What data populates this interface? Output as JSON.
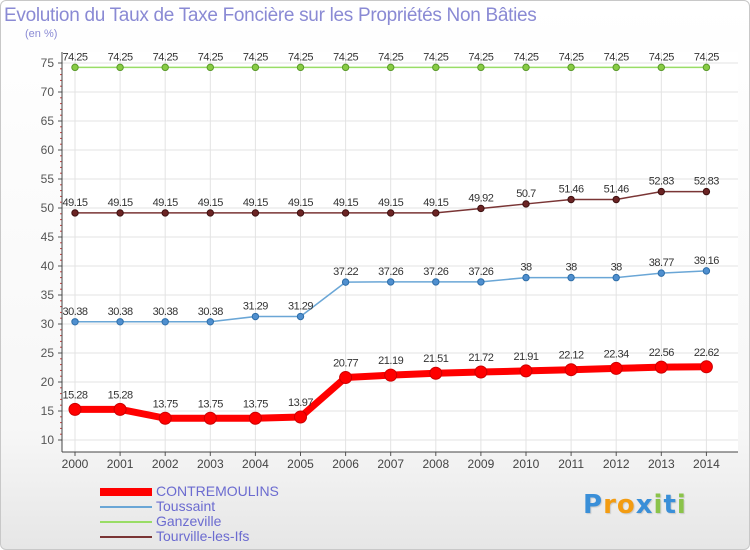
{
  "chart_data": {
    "type": "line",
    "title": "Evolution du Taux de Taxe Foncière sur les Propriétés Non Bâties",
    "ylabel": "(en %)",
    "xlabel": "",
    "ylim": [
      10,
      75
    ],
    "yticks": [
      10,
      15,
      20,
      25,
      30,
      35,
      40,
      45,
      50,
      55,
      60,
      65,
      70,
      75
    ],
    "grid": true,
    "legend_position": "bottom-left",
    "categories": [
      "2000",
      "2001",
      "2002",
      "2003",
      "2004",
      "2005",
      "2006",
      "2007",
      "2008",
      "2009",
      "2010",
      "2011",
      "2012",
      "2013",
      "2014"
    ],
    "series": [
      {
        "name": "CONTREMOULINS",
        "color": "#ff0000",
        "values": [
          15.28,
          15.28,
          13.75,
          13.75,
          13.75,
          13.97,
          20.77,
          21.19,
          21.51,
          21.72,
          21.91,
          22.12,
          22.34,
          22.56,
          22.62
        ],
        "labels": [
          "15.28",
          "15.28",
          "13.75",
          "13.75",
          "13.75",
          "13.97",
          "20.77",
          "21.19",
          "21.51",
          "21.72",
          "21.91",
          "22.12",
          "22.34",
          "22.56",
          "22.62"
        ]
      },
      {
        "name": "Toussaint",
        "color": "#6aa6d6",
        "values": [
          30.38,
          30.38,
          30.38,
          30.38,
          31.29,
          31.29,
          37.22,
          37.26,
          37.26,
          37.26,
          38,
          38,
          38,
          38.77,
          39.16
        ],
        "labels": [
          "30.38",
          "30.38",
          "30.38",
          "30.38",
          "31.29",
          "31.29",
          "37.22",
          "37.26",
          "37.26",
          "37.26",
          "38",
          "38",
          "38",
          "38.77",
          "39.16"
        ]
      },
      {
        "name": "Ganzeville",
        "color": "#99dd66",
        "values": [
          74.25,
          74.25,
          74.25,
          74.25,
          74.25,
          74.25,
          74.25,
          74.25,
          74.25,
          74.25,
          74.25,
          74.25,
          74.25,
          74.25,
          74.25
        ],
        "labels": [
          "74.25",
          "74.25",
          "74.25",
          "74.25",
          "74.25",
          "74.25",
          "74.25",
          "74.25",
          "74.25",
          "74.25",
          "74.25",
          "74.25",
          "74.25",
          "74.25",
          "74.25"
        ]
      },
      {
        "name": "Tourville-les-Ifs",
        "color": "#7a3535",
        "values": [
          49.15,
          49.15,
          49.15,
          49.15,
          49.15,
          49.15,
          49.15,
          49.15,
          49.15,
          49.92,
          50.7,
          51.46,
          51.46,
          52.83,
          52.83
        ],
        "labels": [
          "49.15",
          "49.15",
          "49.15",
          "49.15",
          "49.15",
          "49.15",
          "49.15",
          "49.15",
          "49.15",
          "49.92",
          "50.7",
          "51.46",
          "51.46",
          "52.83",
          "52.83"
        ]
      }
    ]
  },
  "legend": [
    "CONTREMOULINS",
    "Toussaint",
    "Ganzeville",
    "Tourville-les-Ifs"
  ],
  "logo": {
    "text": "Proxiti",
    "letters": [
      "P",
      "r",
      "o",
      "x",
      "i",
      "t",
      "i"
    ],
    "colors": [
      "#3a8fd8",
      "#f39c12",
      "#f39c12",
      "#3a8fd8",
      "#8bc34a",
      "#3a8fd8",
      "#8bc34a"
    ]
  }
}
